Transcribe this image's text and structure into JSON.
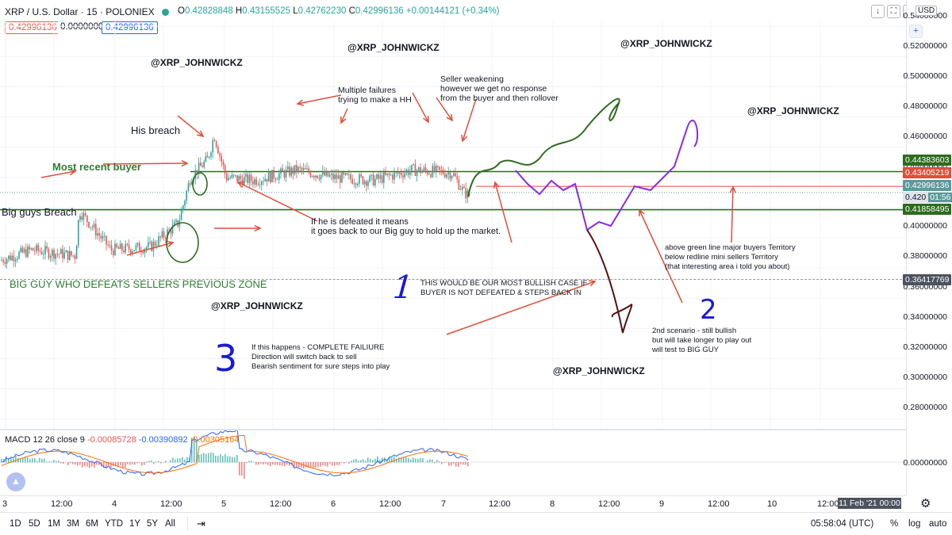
{
  "header": {
    "symbol": "XRP / U.S. Dollar",
    "interval": "15",
    "exchange": "POLONIEX",
    "ohlc": {
      "o_label": "O",
      "o": "0.42828848",
      "h_label": "H",
      "h": "0.43155525",
      "l_label": "L",
      "l": "0.42762230",
      "c_label": "C",
      "c": "0.42996136",
      "change": "+0.00144121 (+0.34%)"
    },
    "sell_price": "0.42996136",
    "spread": "0.00000000",
    "buy_price": "0.42996136"
  },
  "price_axis": {
    "currency": "USD",
    "ticks": [
      "0.54000000",
      "0.52000000",
      "0.50000000",
      "0.48000000",
      "0.46000000",
      "0.44000000",
      "0.40000000",
      "0.38000000",
      "0.36000000",
      "0.34000000",
      "0.32000000",
      "0.30000000",
      "0.28000000"
    ],
    "macd_tick": "0.00000000",
    "tags": {
      "green_upper": "0.44383603",
      "red_line": "0.43405219",
      "last": "0.42996136",
      "countdown_price": "0.420",
      "countdown": "01:56",
      "green_lower": "0.41858495",
      "crosshair": "0.36417769"
    }
  },
  "time_axis": {
    "labels": [
      "3",
      "12:00",
      "4",
      "12:00",
      "5",
      "12:00",
      "6",
      "12:00",
      "7",
      "12:00",
      "8",
      "12:00",
      "9",
      "12:00",
      "10",
      "12:00"
    ],
    "crosshair_date": "11 Feb '21",
    "crosshair_time": "00:00"
  },
  "macd": {
    "name": "MACD",
    "params": "12 26 close 9",
    "hist": "-0.00085728",
    "macd": "-0.00390892",
    "signal": "-0.00305164"
  },
  "bottom_bar": {
    "ranges": [
      "1D",
      "5D",
      "1M",
      "3M",
      "6M",
      "YTD",
      "1Y",
      "5Y",
      "All"
    ],
    "clock": "05:58:04 (UTC)",
    "percent": "%",
    "log": "log",
    "auto": "auto"
  },
  "annotations": {
    "watermark": "@XRP_JOHNWICKZ",
    "his_breach": "His breach",
    "most_recent_buyer": "Most recent buyer",
    "big_guys_breach": "Big guys Breach",
    "big_guy_zone": "BIG GUY WHO DEFEATS SELLERS PREVIOUS ZONE",
    "multiple_failures": "Multiple failures\ntrying to make a HH",
    "seller_weakening": "Seller weakening\nhowever we get no response\nfrom the buyer and then rollover",
    "defeated": "If he is defeated it means\nit goes back to our Big guy to hold up the market.",
    "scenario1": "THIS WOULD BE OUR MOST BULLISH CASE IF\nBUYER IS NOT DEFEATED & STEPS BACK IN",
    "scenario3": "If this happens - COMPLETE FAILIURE\nDirection will switch back to sell\nBearish sentiment for sure steps into play",
    "territory": "above green line major buyers Territory\nbelow redline mini sellers Territory\n(that interesting area i told you about)",
    "scenario2": "2nd scenario - still bullish\nbut will take longer to play out\nwill test to BIG GUY",
    "num1": "1",
    "num2": "2",
    "num3": "3"
  },
  "colors": {
    "up": "#26a69a",
    "down": "#ef5350",
    "green_line": "#2e6b1f",
    "red_line": "#e04f3a",
    "purple_path": "#8a2be2",
    "brown_path": "#5a1010",
    "macd_line": "#2962ff",
    "signal_line": "#ff6d00"
  },
  "icons": {
    "download": "arrow-down",
    "fullscreen": "corners",
    "screenshot": "camera",
    "crosshair": "crosshair",
    "settings": "gear",
    "date_range": "calendar-range"
  }
}
